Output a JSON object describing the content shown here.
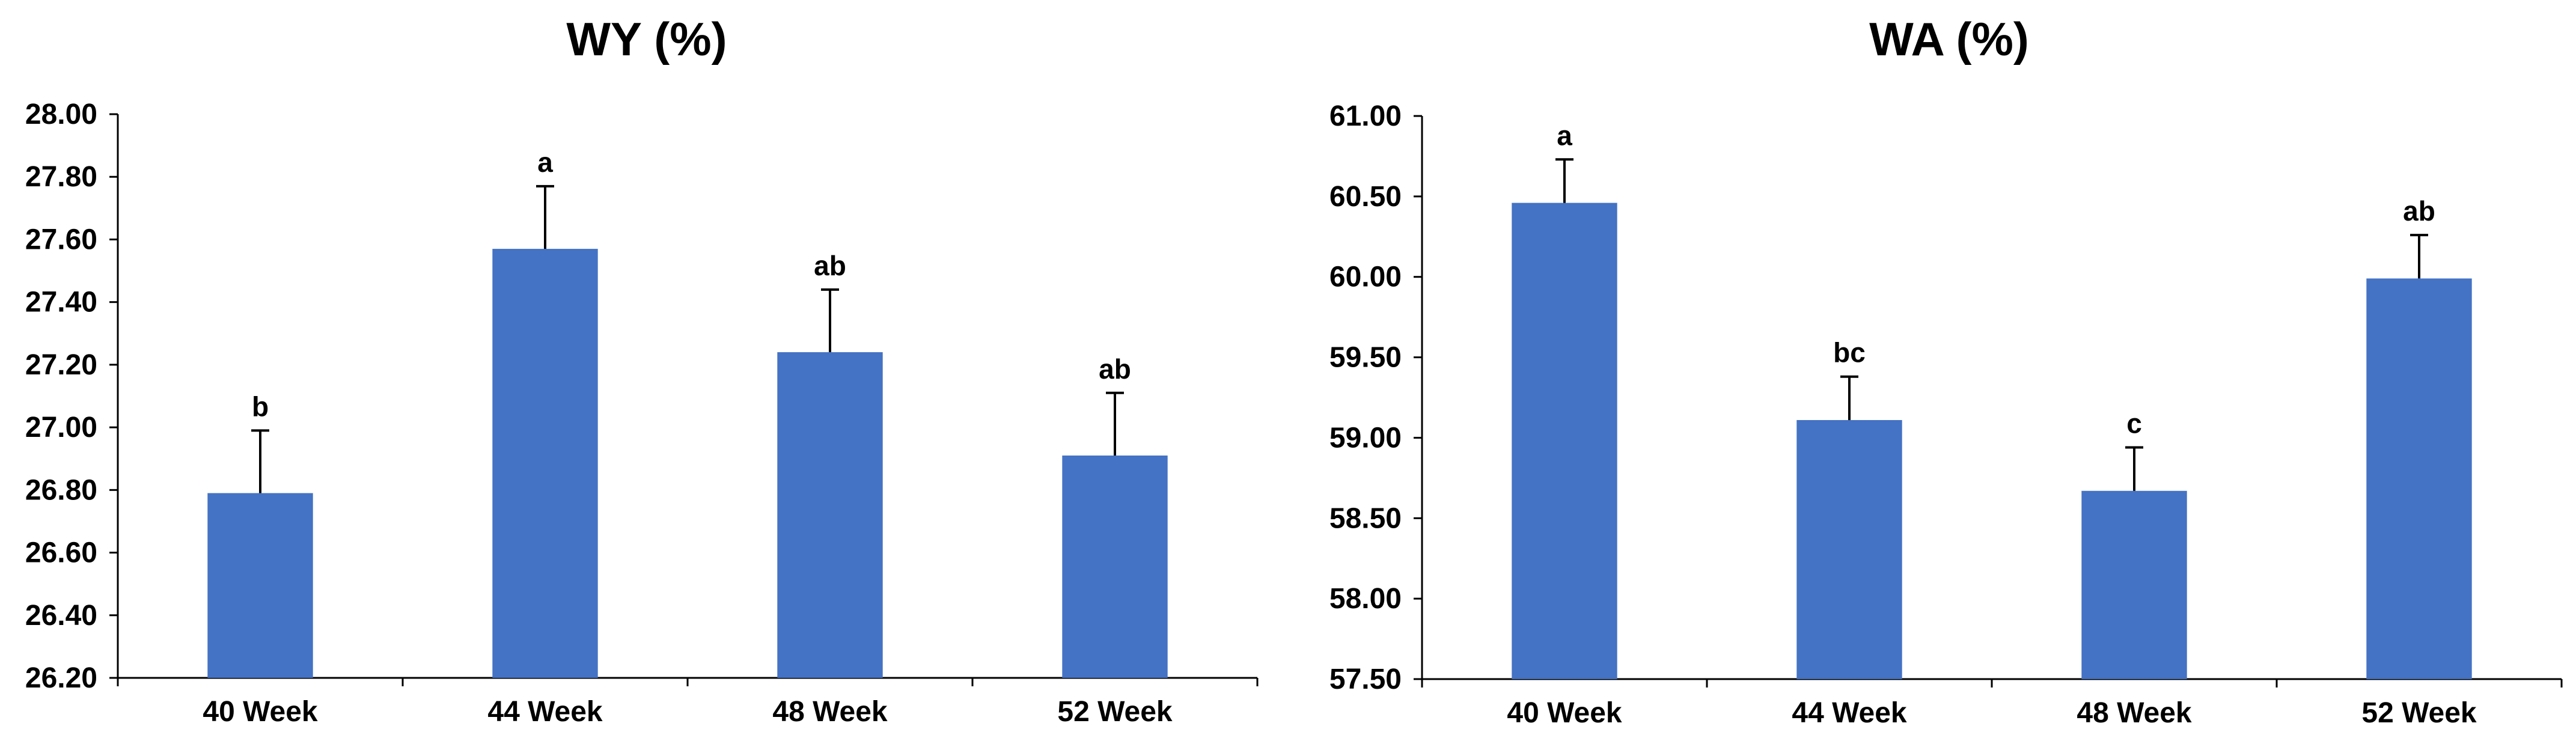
{
  "chart_data": [
    {
      "type": "bar",
      "title": "WY (%)",
      "xlabel": "",
      "ylabel": "",
      "categories": [
        "40 Week",
        "44 Week",
        "48 Week",
        "52 Week"
      ],
      "values": [
        26.79,
        27.57,
        27.24,
        26.91
      ],
      "errors": [
        0.2,
        0.2,
        0.2,
        0.2
      ],
      "letters": [
        "b",
        "a",
        "ab",
        "ab"
      ],
      "ylim": [
        26.2,
        28.0
      ],
      "yticks": [
        "26.20",
        "26.40",
        "26.60",
        "26.80",
        "27.00",
        "27.20",
        "27.40",
        "27.60",
        "27.80",
        "28.00"
      ],
      "bar_color": "#4472C4",
      "grid": false,
      "legend": "none"
    },
    {
      "type": "bar",
      "title": "WA (%)",
      "xlabel": "",
      "ylabel": "",
      "categories": [
        "40 Week",
        "44 Week",
        "48 Week",
        "52 Week"
      ],
      "values": [
        60.46,
        59.11,
        58.67,
        59.99
      ],
      "errors": [
        0.27,
        0.27,
        0.27,
        0.27
      ],
      "letters": [
        "a",
        "bc",
        "c",
        "ab"
      ],
      "ylim": [
        57.5,
        61.0
      ],
      "yticks": [
        "57.50",
        "58.00",
        "58.50",
        "59.00",
        "59.50",
        "60.00",
        "60.50",
        "61.00"
      ],
      "bar_color": "#4472C4",
      "grid": false,
      "legend": "none"
    }
  ]
}
